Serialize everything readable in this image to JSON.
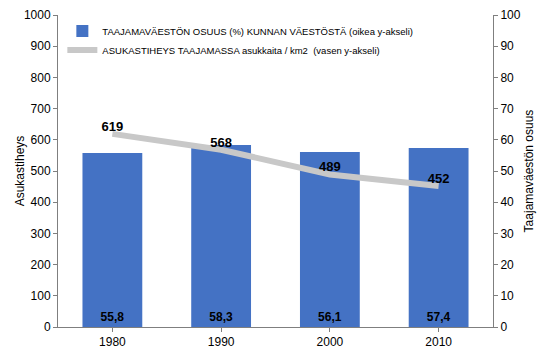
{
  "chart_data": {
    "type": "bar",
    "categories": [
      "1980",
      "1990",
      "2000",
      "2010"
    ],
    "series": [
      {
        "name": "TAAJAMAVÄESTÖN OSUUS (%) KUNNAN VÄESTÖSTÄ (oikea y-akseli)",
        "type": "bar",
        "axis": "y2",
        "color": "#4472c4",
        "values": [
          55.8,
          58.3,
          56.1,
          57.4
        ],
        "value_labels": [
          "55,8",
          "58,3",
          "56,1",
          "57,4"
        ]
      },
      {
        "name": "ASUKASTIHEYS TAAJAMASSA asukkaita / km2  (vasen y-akseli)",
        "type": "line",
        "color": "#c8c8c8",
        "values": [
          619,
          568,
          489,
          452
        ]
      }
    ],
    "y_label": "Asukastiheys",
    "y2_label": "Taajamaväestön osuus",
    "ylim": [
      0,
      1000
    ],
    "yticks": [
      0,
      100,
      200,
      300,
      400,
      500,
      600,
      700,
      800,
      900,
      1000
    ],
    "y2lim": [
      0,
      100
    ],
    "y2ticks": [
      0,
      10,
      20,
      30,
      40,
      50,
      60,
      70,
      80,
      90,
      100
    ],
    "data_labels": true,
    "legend": "upper left",
    "grid": false
  }
}
